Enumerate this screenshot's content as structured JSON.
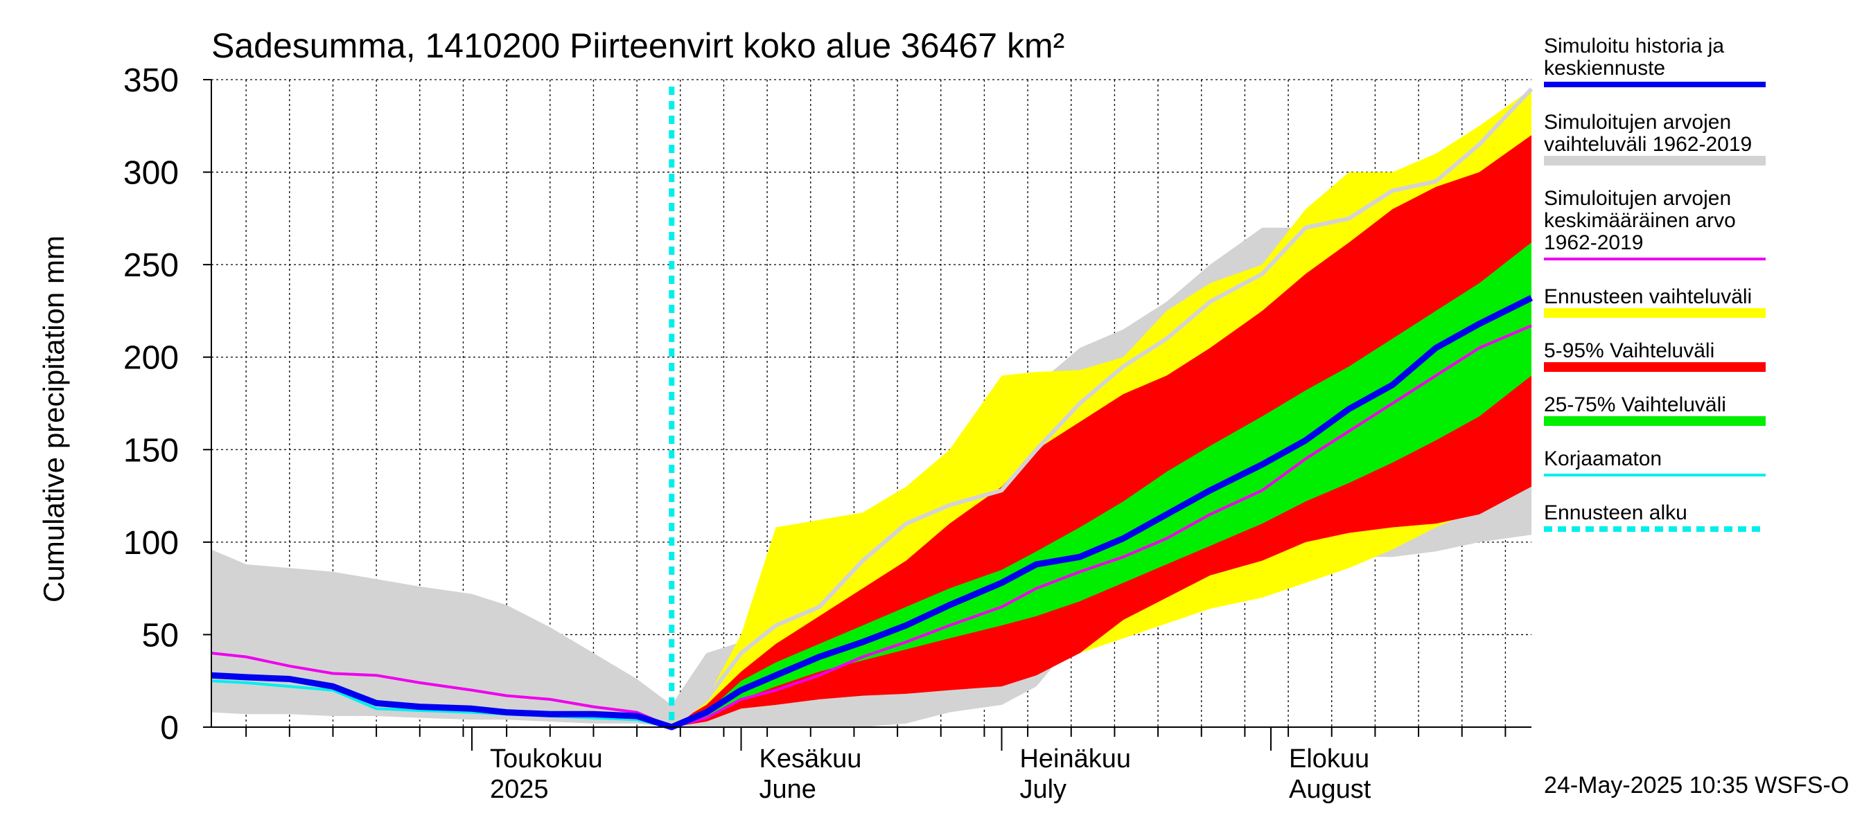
{
  "chart_data": {
    "type": "area",
    "title": "Sadesumma, 1410200 Piirteenvirt koko alue 36467 km²",
    "ylabel": "Cumulative precipitation   mm",
    "ylim": [
      0,
      350
    ],
    "yticks": [
      0,
      50,
      100,
      150,
      200,
      250,
      300,
      350
    ],
    "xlim": [
      "2025-04-01",
      "2025-08-31"
    ],
    "month_labels": [
      {
        "date": "2025-05-01",
        "line1": "Toukokuu",
        "line2": "2025"
      },
      {
        "date": "2025-06-01",
        "line1": "Kesäkuu",
        "line2": "June"
      },
      {
        "date": "2025-07-01",
        "line1": "Heinäkuu",
        "line2": "July"
      },
      {
        "date": "2025-08-01",
        "line1": "Elokuu",
        "line2": "August"
      }
    ],
    "forecast_start": "2025-05-24",
    "footer": "24-May-2025 10:35 WSFS-O",
    "grid": true,
    "legend_position": "right",
    "legend": [
      {
        "key": "sim",
        "label": "Simuloitu historia ja keskiennuste",
        "lines": [
          "Simuloitu historia ja",
          "keskiennuste"
        ],
        "color": "#0000ee",
        "kind": "line"
      },
      {
        "key": "histrange",
        "label": "Simuloitujen arvojen vaihteluväli 1962-2019",
        "lines": [
          "Simuloitujen arvojen",
          "vaihteluväli 1962-2019"
        ],
        "color": "#d3d3d3",
        "kind": "band"
      },
      {
        "key": "histmean",
        "label": "Simuloitujen arvojen keskimääräinen arvo 1962-2019",
        "lines": [
          "Simuloitujen arvojen",
          "keskimääräinen arvo",
          "   1962-2019"
        ],
        "color": "#ee00ee",
        "kind": "line"
      },
      {
        "key": "fcrange",
        "label": "Ennusteen vaihteluväli",
        "lines": [
          "Ennusteen vaihteluväli"
        ],
        "color": "#ffff00",
        "kind": "band"
      },
      {
        "key": "p5_95",
        "label": "5-95% Vaihteluväli",
        "lines": [
          "5-95% Vaihteluväli"
        ],
        "color": "#ff0000",
        "kind": "band"
      },
      {
        "key": "p25_75",
        "label": "25-75% Vaihteluväli",
        "lines": [
          "25-75% Vaihteluväli"
        ],
        "color": "#00ee00",
        "kind": "band"
      },
      {
        "key": "raw",
        "label": "Korjaamaton",
        "lines": [
          "Korjaamaton"
        ],
        "color": "#00eeee",
        "kind": "line"
      },
      {
        "key": "fcstart",
        "label": "Ennusteen alku",
        "lines": [
          "Ennusteen alku"
        ],
        "color": "#00eeee",
        "kind": "dashed"
      }
    ],
    "series": [
      {
        "key": "histrange",
        "x": [
          "2025-04-01",
          "2025-04-05",
          "2025-04-10",
          "2025-04-15",
          "2025-04-20",
          "2025-04-25",
          "2025-05-01",
          "2025-05-05",
          "2025-05-10",
          "2025-05-15",
          "2025-05-20",
          "2025-05-24",
          "2025-05-28",
          "2025-06-01",
          "2025-06-05",
          "2025-06-10",
          "2025-06-15",
          "2025-06-20",
          "2025-06-25",
          "2025-07-01",
          "2025-07-05",
          "2025-07-10",
          "2025-07-15",
          "2025-07-20",
          "2025-07-25",
          "2025-07-31",
          "2025-08-05",
          "2025-08-10",
          "2025-08-15",
          "2025-08-20",
          "2025-08-25",
          "2025-08-31"
        ],
        "low": [
          8,
          7,
          7,
          6,
          6,
          5,
          4,
          4,
          3,
          2,
          2,
          0,
          0,
          0,
          0,
          0,
          0,
          2,
          8,
          12,
          22,
          50,
          60,
          75,
          80,
          85,
          90,
          92,
          92,
          95,
          100,
          104
        ],
        "high": [
          96,
          88,
          86,
          84,
          80,
          76,
          72,
          66,
          54,
          40,
          26,
          12,
          40,
          46,
          55,
          75,
          100,
          110,
          125,
          150,
          185,
          205,
          215,
          230,
          250,
          270,
          270,
          285,
          295,
          310,
          320,
          340
        ]
      },
      {
        "key": "fcrange",
        "x": [
          "2025-05-24",
          "2025-05-28",
          "2025-06-01",
          "2025-06-05",
          "2025-06-10",
          "2025-06-15",
          "2025-06-20",
          "2025-06-25",
          "2025-07-01",
          "2025-07-05",
          "2025-07-10",
          "2025-07-15",
          "2025-07-20",
          "2025-07-25",
          "2025-07-31",
          "2025-08-05",
          "2025-08-10",
          "2025-08-15",
          "2025-08-20",
          "2025-08-25",
          "2025-08-31"
        ],
        "low": [
          0,
          5,
          10,
          12,
          16,
          18,
          20,
          26,
          32,
          36,
          40,
          48,
          56,
          64,
          70,
          78,
          86,
          96,
          108,
          118,
          130
        ],
        "high": [
          2,
          15,
          50,
          108,
          112,
          116,
          130,
          150,
          190,
          192,
          193,
          200,
          225,
          240,
          250,
          280,
          300,
          300,
          310,
          325,
          345
        ]
      },
      {
        "key": "p5_95",
        "x": [
          "2025-05-24",
          "2025-05-28",
          "2025-06-01",
          "2025-06-05",
          "2025-06-10",
          "2025-06-15",
          "2025-06-20",
          "2025-06-25",
          "2025-07-01",
          "2025-07-05",
          "2025-07-10",
          "2025-07-15",
          "2025-07-20",
          "2025-07-25",
          "2025-07-31",
          "2025-08-05",
          "2025-08-10",
          "2025-08-15",
          "2025-08-20",
          "2025-08-25",
          "2025-08-31"
        ],
        "low": [
          0,
          3,
          10,
          12,
          15,
          17,
          18,
          20,
          22,
          28,
          40,
          58,
          70,
          82,
          90,
          100,
          105,
          108,
          110,
          115,
          130
        ],
        "high": [
          1,
          12,
          30,
          45,
          60,
          75,
          90,
          110,
          130,
          150,
          165,
          180,
          190,
          205,
          225,
          245,
          262,
          280,
          292,
          300,
          320
        ]
      },
      {
        "key": "p25_75",
        "x": [
          "2025-05-24",
          "2025-05-28",
          "2025-06-01",
          "2025-06-05",
          "2025-06-10",
          "2025-06-15",
          "2025-06-20",
          "2025-06-25",
          "2025-07-01",
          "2025-07-05",
          "2025-07-10",
          "2025-07-15",
          "2025-07-20",
          "2025-07-25",
          "2025-07-31",
          "2025-08-05",
          "2025-08-10",
          "2025-08-15",
          "2025-08-20",
          "2025-08-25",
          "2025-08-31"
        ],
        "low": [
          0,
          5,
          15,
          22,
          30,
          36,
          42,
          48,
          55,
          60,
          68,
          78,
          88,
          98,
          110,
          122,
          132,
          143,
          155,
          168,
          190
        ],
        "high": [
          1,
          8,
          25,
          35,
          45,
          55,
          65,
          75,
          85,
          95,
          108,
          122,
          138,
          152,
          168,
          182,
          195,
          210,
          225,
          240,
          262
        ]
      },
      {
        "key": "histmean",
        "x": [
          "2025-04-01",
          "2025-04-05",
          "2025-04-10",
          "2025-04-15",
          "2025-04-20",
          "2025-04-25",
          "2025-05-01",
          "2025-05-05",
          "2025-05-10",
          "2025-05-15",
          "2025-05-20",
          "2025-05-24",
          "2025-05-28",
          "2025-06-01",
          "2025-06-05",
          "2025-06-10",
          "2025-06-15",
          "2025-06-20",
          "2025-06-25",
          "2025-07-01",
          "2025-07-05",
          "2025-07-10",
          "2025-07-15",
          "2025-07-20",
          "2025-07-25",
          "2025-07-31",
          "2025-08-05",
          "2025-08-10",
          "2025-08-15",
          "2025-08-20",
          "2025-08-25",
          "2025-08-31"
        ],
        "y": [
          40,
          38,
          33,
          29,
          28,
          24,
          20,
          17,
          15,
          11,
          8,
          0,
          5,
          15,
          20,
          28,
          38,
          46,
          55,
          65,
          75,
          84,
          92,
          102,
          115,
          128,
          145,
          160,
          175,
          190,
          205,
          217
        ]
      },
      {
        "key": "sim",
        "x": [
          "2025-04-01",
          "2025-04-05",
          "2025-04-10",
          "2025-04-15",
          "2025-04-20",
          "2025-04-25",
          "2025-05-01",
          "2025-05-05",
          "2025-05-10",
          "2025-05-15",
          "2025-05-20",
          "2025-05-24",
          "2025-05-28",
          "2025-06-01",
          "2025-06-05",
          "2025-06-10",
          "2025-06-15",
          "2025-06-20",
          "2025-06-25",
          "2025-07-01",
          "2025-07-05",
          "2025-07-10",
          "2025-07-15",
          "2025-07-20",
          "2025-07-25",
          "2025-07-31",
          "2025-08-05",
          "2025-08-10",
          "2025-08-15",
          "2025-08-20",
          "2025-08-25",
          "2025-08-31"
        ],
        "y": [
          28,
          27,
          26,
          22,
          13,
          11,
          10,
          8,
          7,
          7,
          6,
          0,
          8,
          20,
          28,
          38,
          46,
          55,
          66,
          78,
          88,
          92,
          102,
          115,
          128,
          142,
          155,
          172,
          185,
          205,
          218,
          232
        ]
      },
      {
        "key": "raw",
        "x": [
          "2025-04-01",
          "2025-04-05",
          "2025-04-10",
          "2025-04-15",
          "2025-04-20",
          "2025-04-25",
          "2025-05-01",
          "2025-05-05",
          "2025-05-10",
          "2025-05-15",
          "2025-05-20",
          "2025-05-24"
        ],
        "y": [
          25,
          24,
          22,
          20,
          10,
          9,
          8,
          7,
          6,
          5,
          4,
          0
        ]
      },
      {
        "key": "pastyear",
        "x": [
          "2025-05-24",
          "2025-05-28",
          "2025-06-01",
          "2025-06-05",
          "2025-06-10",
          "2025-06-15",
          "2025-06-20",
          "2025-06-25",
          "2025-07-01",
          "2025-07-05",
          "2025-07-10",
          "2025-07-15",
          "2025-07-20",
          "2025-07-25",
          "2025-07-31",
          "2025-08-05",
          "2025-08-10",
          "2025-08-15",
          "2025-08-20",
          "2025-08-25",
          "2025-08-31"
        ],
        "y": [
          0,
          15,
          40,
          55,
          65,
          90,
          110,
          120,
          128,
          150,
          175,
          195,
          210,
          230,
          245,
          270,
          275,
          290,
          295,
          315,
          345
        ]
      }
    ]
  }
}
